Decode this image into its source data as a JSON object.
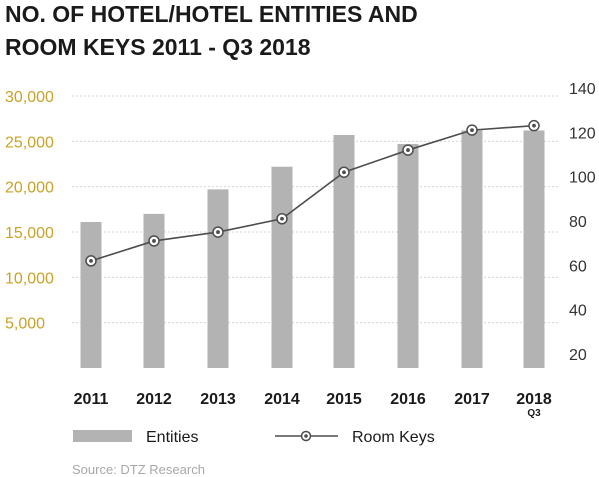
{
  "chart_data": {
    "type": "bar",
    "title_lines": [
      "NO. OF HOTEL/HOTEL ENTITIES AND",
      "ROOM KEYS 2011 - Q3 2018"
    ],
    "categories": [
      "2011",
      "2012",
      "2013",
      "2014",
      "2015",
      "2016",
      "2017",
      "2018"
    ],
    "category_sublabels": [
      "",
      "",
      "",
      "",
      "",
      "",
      "",
      "Q3"
    ],
    "series": [
      {
        "name": "Entities",
        "type": "bar",
        "axis": "left",
        "color": "#b3b3b3",
        "values": [
          16100,
          17000,
          19700,
          22200,
          25700,
          24700,
          26200,
          26200
        ]
      },
      {
        "name": "Room Keys",
        "type": "line",
        "axis": "right",
        "color": "#4d4d4d",
        "values": [
          62,
          71,
          75,
          81,
          102,
          112,
          121,
          123
        ]
      }
    ],
    "y_left": {
      "ticks": [
        "",
        "5,000",
        "10,000",
        "15,000",
        "20,000",
        "25,000",
        "30,000"
      ],
      "lim": [
        0,
        30000
      ],
      "color": "#c9a227"
    },
    "y_right": {
      "ticks": [
        "20",
        "40",
        "60",
        "80",
        "100",
        "120",
        "140"
      ],
      "lim": [
        20,
        140
      ]
    },
    "grid": true,
    "legend_position": "bottom",
    "source": "Source: DTZ Research"
  }
}
